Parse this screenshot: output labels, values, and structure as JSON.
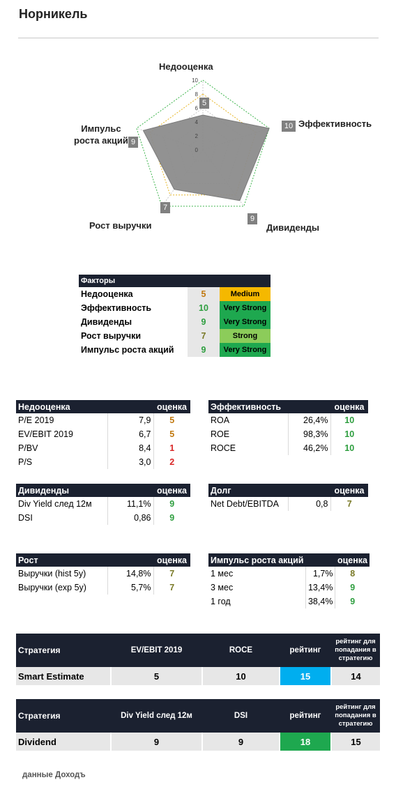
{
  "title": "Норникель",
  "radar": {
    "axis_max": 10,
    "ticks": [
      "0",
      "2",
      "4",
      "6",
      "8",
      "10"
    ],
    "axes": [
      {
        "label": "Недооценка",
        "value": 5
      },
      {
        "label": "Эффективность",
        "value": 10
      },
      {
        "label": "Дивиденды",
        "value": 9
      },
      {
        "label": "Рост выручки",
        "value": 7
      },
      {
        "label": "Импульс роста акций",
        "label_line1": "Импульс",
        "label_line2": "роста акций",
        "value": 9
      }
    ]
  },
  "factors": {
    "header": "Факторы",
    "rows": [
      {
        "name": "Недооценка",
        "score": "5",
        "rating": "Medium",
        "color": "#f5b800"
      },
      {
        "name": "Эффективность",
        "score": "10",
        "rating": "Very Strong",
        "color": "#1ea84f"
      },
      {
        "name": "Дивиденды",
        "score": "9",
        "rating": "Very Strong",
        "color": "#1ea84f"
      },
      {
        "name": "Рост выручки",
        "score": "7",
        "rating": "Strong",
        "color": "#8ccc5a"
      },
      {
        "name": "Импульс роста акций",
        "score": "9",
        "rating": "Very Strong",
        "color": "#1ea84f"
      }
    ]
  },
  "undervaluation": {
    "header": "Недооценка",
    "score_header": "оценка",
    "rows": [
      {
        "name": "P/E 2019",
        "value": "7,9",
        "score": "5"
      },
      {
        "name": "EV/EBIT 2019",
        "value": "6,7",
        "score": "5"
      },
      {
        "name": "P/BV",
        "value": "8,4",
        "score": "1"
      },
      {
        "name": "P/S",
        "value": "3,0",
        "score": "2"
      }
    ]
  },
  "efficiency": {
    "header": "Эффективность",
    "score_header": "оценка",
    "rows": [
      {
        "name": "ROA",
        "value": "26,4%",
        "score": "10"
      },
      {
        "name": "ROE",
        "value": "98,3%",
        "score": "10"
      },
      {
        "name": "ROCE",
        "value": "46,2%",
        "score": "10"
      }
    ]
  },
  "dividends": {
    "header": "Дивиденды",
    "score_header": "оценка",
    "rows": [
      {
        "name": "Div Yield след 12м",
        "value": "11,1%",
        "score": "9"
      },
      {
        "name": "DSI",
        "value": "0,86",
        "score": "9"
      }
    ]
  },
  "debt": {
    "header": "Долг",
    "score_header": "оценка",
    "rows": [
      {
        "name": "Net Debt/EBITDA",
        "value": "0,8",
        "score": "7"
      }
    ]
  },
  "growth": {
    "header": "Рост",
    "score_header": "оценка",
    "rows": [
      {
        "name": "Выручки (hist 5y)",
        "value": "14,8%",
        "score": "7"
      },
      {
        "name": "Выручки (exp 5y)",
        "value": "5,7%",
        "score": "7"
      }
    ]
  },
  "momentum": {
    "header": "Импульс роста акций",
    "score_header": "оценка",
    "rows": [
      {
        "name": "1 мес",
        "value": "1,7%",
        "score": "8"
      },
      {
        "name": "3 мес",
        "value": "13,4%",
        "score": "9"
      },
      {
        "name": "1 год",
        "value": "38,4%",
        "score": "9"
      }
    ]
  },
  "strategy1": {
    "h_strategy": "Стратегия",
    "h_m1": "EV/EBIT 2019",
    "h_m2": "ROCE",
    "h_rating": "рейтинг",
    "h_threshold": "рейтинг для попадания в стратегию",
    "name": "Smart Estimate",
    "m1": "5",
    "m2": "10",
    "rating": "15",
    "threshold": "14"
  },
  "strategy2": {
    "h_strategy": "Стратегия",
    "h_m1": "Div Yield след 12м",
    "h_m2": "DSI",
    "h_rating": "рейтинг",
    "h_threshold": "рейтинг для попадания в стратегию",
    "name": "Dividend",
    "m1": "9",
    "m2": "9",
    "rating": "18",
    "threshold": "15"
  },
  "footer": "данные Доходъ",
  "colors": {
    "header_bg": "#1b2130",
    "medium": "#f5b800",
    "very_strong": "#1ea84f",
    "strong": "#8ccc5a",
    "rating_blue": "#00aeef"
  }
}
